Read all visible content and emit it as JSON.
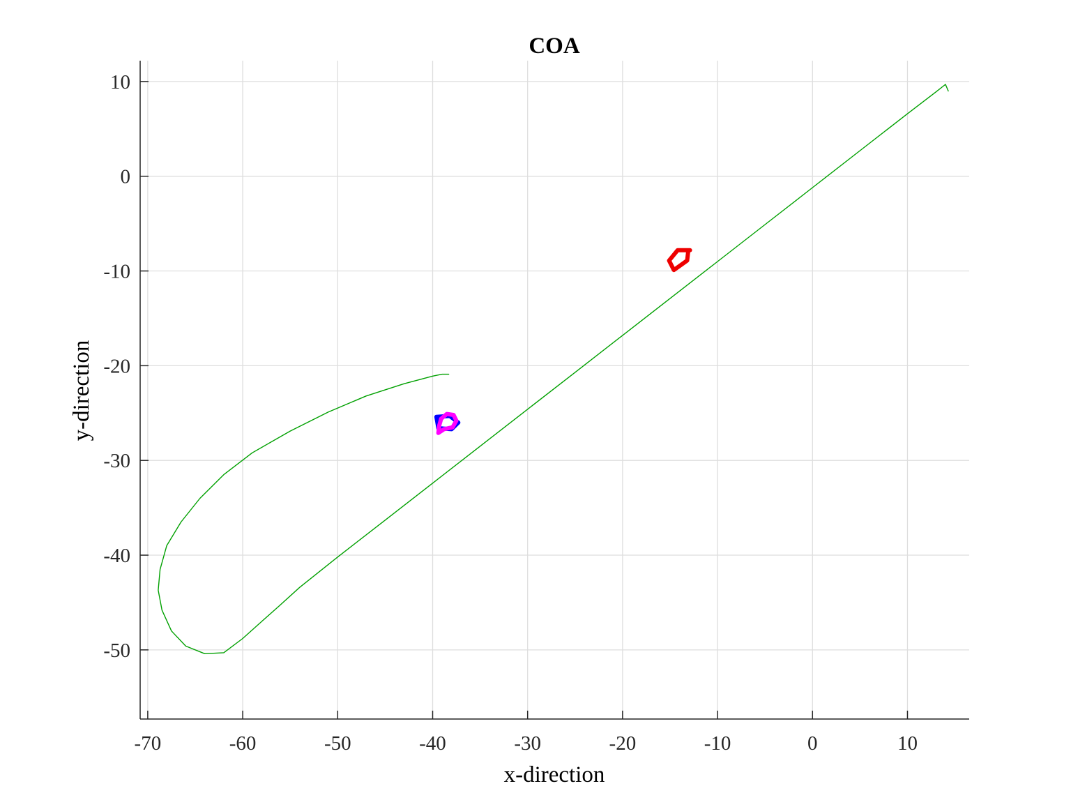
{
  "chart_data": {
    "type": "line",
    "title": "COA",
    "xlabel": "x-direction",
    "ylabel": "y-direction",
    "xlim": [
      -70.8,
      16.5
    ],
    "ylim": [
      -57.3,
      12.2
    ],
    "xticks": [
      -70,
      -60,
      -50,
      -40,
      -30,
      -20,
      -10,
      0,
      10
    ],
    "yticks": [
      10,
      0,
      -10,
      -20,
      -30,
      -40,
      -50
    ],
    "grid": true,
    "legend": "none",
    "series": [
      {
        "color": "#00a000",
        "line_width": "thin",
        "points": [
          [
            14.3,
            9.0
          ],
          [
            14.0,
            9.7
          ],
          [
            13.0,
            8.9
          ],
          [
            10.0,
            6.6
          ],
          [
            5.0,
            2.7
          ],
          [
            0.0,
            -1.2
          ],
          [
            -5.0,
            -5.1
          ],
          [
            -10.0,
            -9.0
          ],
          [
            -15.0,
            -12.9
          ],
          [
            -20.0,
            -16.8
          ],
          [
            -25.0,
            -20.7
          ],
          [
            -30.0,
            -24.6
          ],
          [
            -35.0,
            -28.5
          ],
          [
            -40.0,
            -32.4
          ],
          [
            -45.0,
            -36.3
          ],
          [
            -50.0,
            -40.2
          ],
          [
            -54.0,
            -43.4
          ],
          [
            -56.2,
            -45.4
          ],
          [
            -58.0,
            -47.0
          ],
          [
            -60.0,
            -48.8
          ],
          [
            -62.0,
            -50.3
          ],
          [
            -64.0,
            -50.4
          ],
          [
            -66.0,
            -49.6
          ],
          [
            -67.5,
            -48.0
          ],
          [
            -68.5,
            -45.8
          ],
          [
            -68.9,
            -43.7
          ],
          [
            -68.7,
            -41.5
          ],
          [
            -68.0,
            -39.0
          ],
          [
            -66.5,
            -36.5
          ],
          [
            -64.5,
            -34.0
          ],
          [
            -62.0,
            -31.5
          ],
          [
            -59.0,
            -29.2
          ],
          [
            -55.0,
            -26.9
          ],
          [
            -51.0,
            -24.9
          ],
          [
            -47.0,
            -23.2
          ],
          [
            -43.0,
            -21.9
          ],
          [
            -40.0,
            -21.1
          ],
          [
            -39.0,
            -20.9
          ],
          [
            -38.3,
            -20.9
          ]
        ]
      },
      {
        "color": "#0000ff",
        "line_width": "thick",
        "points": [
          [
            -39.6,
            -25.4
          ],
          [
            -38.2,
            -25.3
          ],
          [
            -37.3,
            -26.0
          ],
          [
            -38.0,
            -26.7
          ],
          [
            -39.4,
            -26.6
          ],
          [
            -39.6,
            -25.4
          ]
        ]
      },
      {
        "color": "#ff00ff",
        "line_width": "thick",
        "points": [
          [
            -39.3,
            -26.3
          ],
          [
            -39.1,
            -25.6
          ],
          [
            -38.5,
            -25.1
          ],
          [
            -37.8,
            -25.2
          ],
          [
            -37.5,
            -25.8
          ],
          [
            -37.9,
            -26.5
          ],
          [
            -38.8,
            -26.7
          ],
          [
            -39.4,
            -27.1
          ],
          [
            -39.3,
            -26.3
          ]
        ]
      },
      {
        "color": "#ee0000",
        "line_width": "thick",
        "points": [
          [
            -12.9,
            -7.8
          ],
          [
            -14.2,
            -7.8
          ],
          [
            -15.1,
            -8.9
          ],
          [
            -14.6,
            -9.9
          ],
          [
            -13.2,
            -8.9
          ],
          [
            -13.1,
            -8.0
          ]
        ]
      }
    ]
  }
}
